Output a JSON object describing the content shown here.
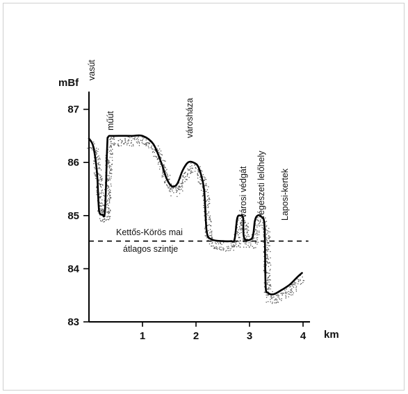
{
  "chart_data": {
    "type": "line",
    "xlabel": "km",
    "ylabel": "mBf",
    "xlim": [
      0,
      4.1
    ],
    "ylim": [
      83,
      87.4
    ],
    "x_ticks": [
      1,
      2,
      3,
      4
    ],
    "y_ticks": [
      83,
      84,
      85,
      86,
      87
    ],
    "x_tick_labels": [
      "1",
      "2",
      "3",
      "4"
    ],
    "y_tick_labels": [
      "83",
      "84",
      "85",
      "86",
      "87"
    ],
    "grid": false,
    "legend": "none",
    "line_color": "#000000",
    "stipple_color": "#555555",
    "series": [
      {
        "x": [
          0,
          0.08,
          0.15,
          0.18,
          0.2,
          0.25,
          0.3,
          0.34,
          0.36,
          0.45,
          0.8,
          1.0,
          1.2,
          1.35,
          1.45,
          1.55,
          1.65,
          1.75,
          1.85,
          1.95,
          2.05,
          2.15,
          2.2,
          2.3,
          2.5,
          2.65,
          2.72,
          2.77,
          2.83,
          2.88,
          2.9,
          3.05,
          3.1,
          3.15,
          3.22,
          3.28,
          3.3,
          3.34,
          3.45,
          3.6,
          3.75,
          3.9,
          3.98
        ],
        "y": [
          86.45,
          86.3,
          85.8,
          85.2,
          85.05,
          85.02,
          85.1,
          86.3,
          86.48,
          86.5,
          86.5,
          86.5,
          86.35,
          86.0,
          85.7,
          85.55,
          85.6,
          85.85,
          86.0,
          86.0,
          85.9,
          85.5,
          84.7,
          84.55,
          84.52,
          84.52,
          84.55,
          84.95,
          85.0,
          84.95,
          84.58,
          84.58,
          84.9,
          85.0,
          84.98,
          84.8,
          83.7,
          83.55,
          83.52,
          83.6,
          83.7,
          83.85,
          83.92
        ]
      }
    ],
    "reference_line": {
      "value": 84.52,
      "style": "dashed",
      "label_line1": "Kettős-Körös mai",
      "label_line2": "átlagos szintje"
    },
    "annotations": [
      {
        "text": "vasút",
        "x": 0.0
      },
      {
        "text": "műút",
        "x": 0.33
      },
      {
        "text": "városháza",
        "x": 1.85
      },
      {
        "text": "városi védgát",
        "x": 2.85
      },
      {
        "text": "régészeti lelőhely",
        "x": 3.15
      },
      {
        "text": "Laposi-kertek",
        "x": 3.6
      }
    ]
  }
}
